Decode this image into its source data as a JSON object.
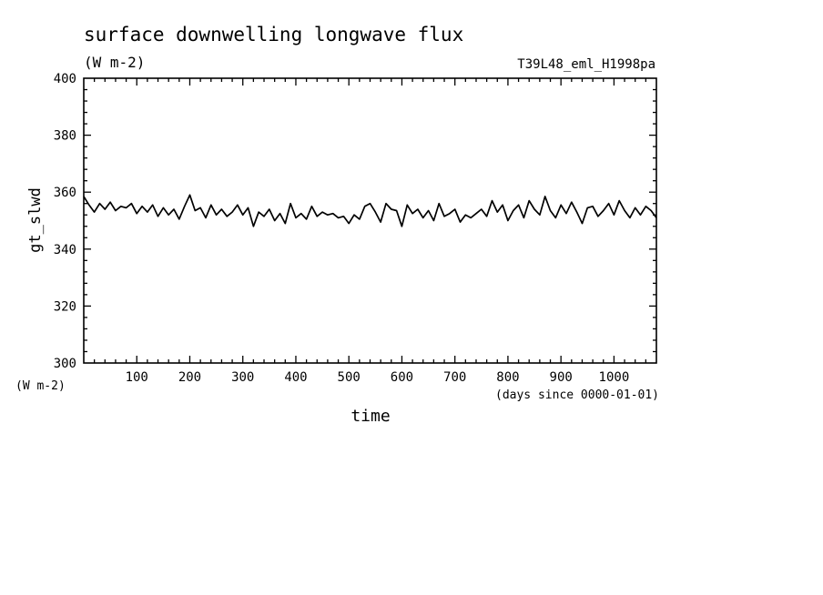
{
  "header": {
    "title": "surface downwelling longwave flux",
    "units": "(W m-2)",
    "run_label": "T39L48_eml_H1998pa"
  },
  "axes": {
    "y_axis_label": "gt_slwd",
    "y_units_label": "(W m-2)",
    "x_axis_label": "time",
    "x_units_label": "(days since 0000-01-01)"
  },
  "chart_data": {
    "type": "line",
    "title": "surface downwelling longwave flux",
    "subtitle": "(W m-2)",
    "xlabel": "time",
    "ylabel": "gt_slwd",
    "xlim": [
      0,
      1080
    ],
    "ylim": [
      300,
      400
    ],
    "x_ticks": [
      100,
      200,
      300,
      400,
      500,
      600,
      700,
      800,
      900,
      1000
    ],
    "y_ticks": [
      300,
      320,
      340,
      360,
      380,
      400
    ],
    "grid": false,
    "legend": "none",
    "line_color": "#000000",
    "series": [
      {
        "x": [
          0,
          10,
          20,
          30,
          40,
          50,
          60,
          70,
          80,
          90,
          100,
          110,
          120,
          130,
          140,
          150,
          160,
          170,
          180,
          190,
          200,
          210,
          220,
          230,
          240,
          250,
          260,
          270,
          280,
          290,
          300,
          310,
          320,
          330,
          340,
          350,
          360,
          370,
          380,
          390,
          400,
          410,
          420,
          430,
          440,
          450,
          460,
          470,
          480,
          490,
          500,
          510,
          520,
          530,
          540,
          550,
          560,
          570,
          580,
          590,
          600,
          610,
          620,
          630,
          640,
          650,
          660,
          670,
          680,
          690,
          700,
          710,
          720,
          730,
          740,
          750,
          760,
          770,
          780,
          790,
          800,
          810,
          820,
          830,
          840,
          850,
          860,
          870,
          880,
          890,
          900,
          910,
          920,
          930,
          940,
          950,
          960,
          970,
          980,
          990,
          1000,
          1010,
          1020,
          1030,
          1040,
          1050,
          1060,
          1070,
          1080
        ],
        "values": [
          358.5,
          355.5,
          353.0,
          356.0,
          354.0,
          356.5,
          353.5,
          355.0,
          354.5,
          356.0,
          352.5,
          355.0,
          353.0,
          355.5,
          351.5,
          354.5,
          352.0,
          354.0,
          350.5,
          355.0,
          359.0,
          353.5,
          354.5,
          351.0,
          355.5,
          352.0,
          354.0,
          351.5,
          353.0,
          355.5,
          352.0,
          354.5,
          348.0,
          353.0,
          351.5,
          354.0,
          350.0,
          352.5,
          349.0,
          356.0,
          351.0,
          352.5,
          350.5,
          355.0,
          351.5,
          353.0,
          352.0,
          352.5,
          351.0,
          351.5,
          349.0,
          352.0,
          350.5,
          355.0,
          356.0,
          353.0,
          349.5,
          356.0,
          354.0,
          353.5,
          348.0,
          355.5,
          352.5,
          354.0,
          351.0,
          353.5,
          350.0,
          356.0,
          351.5,
          352.5,
          354.0,
          349.5,
          352.0,
          351.0,
          352.5,
          354.0,
          351.5,
          357.0,
          353.0,
          355.5,
          350.0,
          353.5,
          355.5,
          351.0,
          357.0,
          354.0,
          352.0,
          358.5,
          353.5,
          351.0,
          355.5,
          352.5,
          356.5,
          353.0,
          349.0,
          354.5,
          355.0,
          351.5,
          353.5,
          356.0,
          352.0,
          357.0,
          353.5,
          351.0,
          354.5,
          352.0,
          355.0,
          353.5,
          351.0
        ]
      }
    ]
  }
}
